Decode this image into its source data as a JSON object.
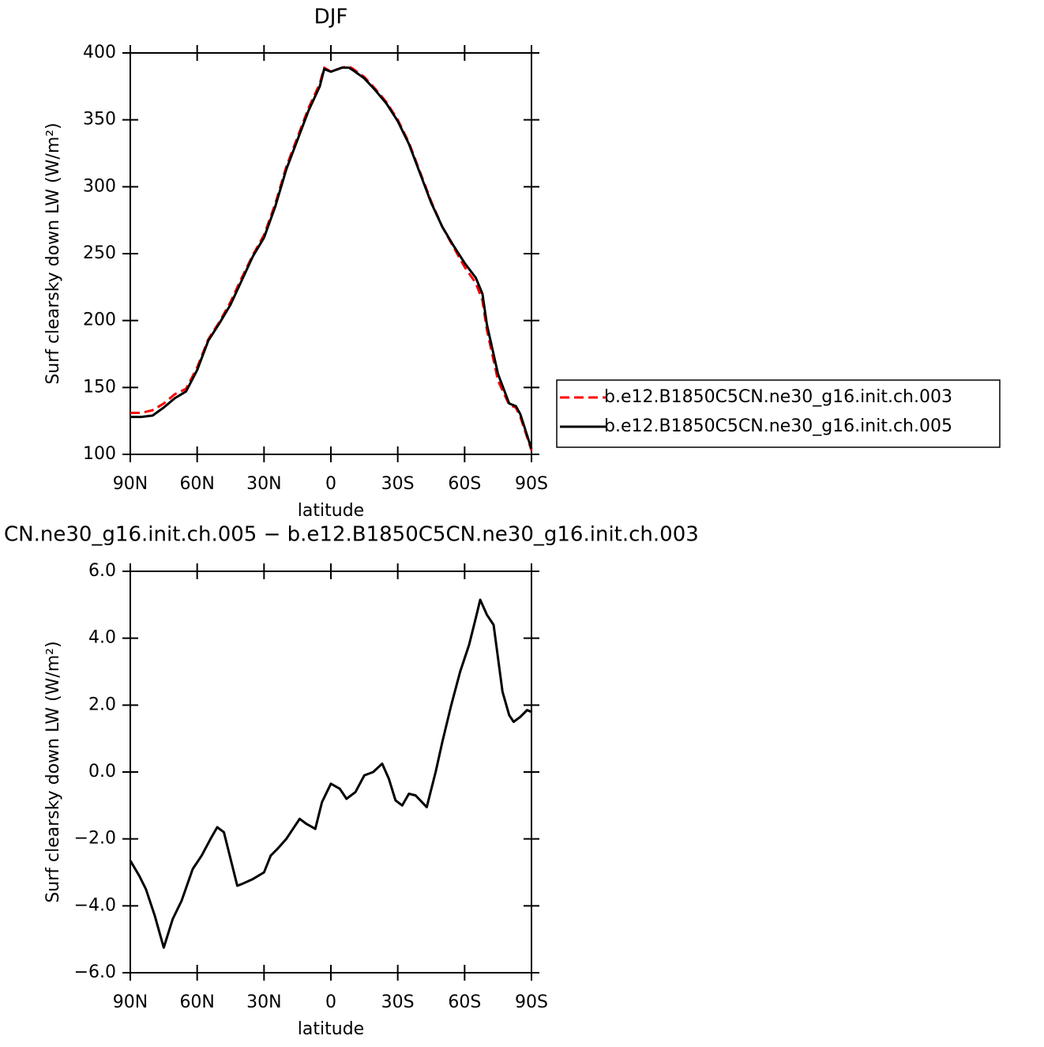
{
  "chart_data": [
    {
      "type": "line",
      "title": "DJF",
      "xlabel": "latitude",
      "ylabel": "Surf clearsky down LW (W/m²)",
      "x": [
        90,
        85,
        80,
        75,
        70,
        65,
        60,
        55,
        50,
        45,
        40,
        35,
        30,
        25,
        20,
        15,
        10,
        5,
        3,
        0,
        -5,
        -8,
        -10,
        -15,
        -20,
        -25,
        -30,
        -35,
        -40,
        -45,
        -50,
        -55,
        -60,
        -65,
        -68,
        -70,
        -75,
        -80,
        -83,
        -85,
        -90
      ],
      "series": [
        {
          "name": "b.e12.B1850C5CN.ne30_g16.init.ch.003",
          "color": "#ff0000",
          "dash": true,
          "values": [
            131,
            131,
            133,
            138,
            145,
            149,
            165,
            186,
            199,
            214,
            232,
            249,
            264,
            287,
            315,
            337,
            359,
            377,
            389,
            386,
            389,
            390,
            388,
            382,
            373,
            363,
            350,
            333,
            311,
            289,
            270,
            255,
            240,
            228,
            215,
            193,
            155,
            137,
            135,
            128,
            103
          ]
        },
        {
          "name": "b.e12.B1850C5CN.ne30_g16.init.ch.005",
          "color": "#000000",
          "dash": false,
          "values": [
            128,
            128,
            129,
            135,
            142,
            147,
            163,
            185,
            198,
            212,
            230,
            248,
            262,
            285,
            313,
            335,
            357,
            375,
            388,
            386,
            389,
            389,
            387,
            381,
            372,
            362,
            349,
            332,
            310,
            288,
            270,
            256,
            243,
            232,
            220,
            197,
            160,
            138,
            136,
            130,
            104
          ]
        }
      ],
      "xlim": [
        90,
        -90
      ],
      "xticks": [
        {
          "value": 90,
          "label": "90N"
        },
        {
          "value": 60,
          "label": "60N"
        },
        {
          "value": 30,
          "label": "30N"
        },
        0,
        {
          "value": -30,
          "label": "30S"
        },
        {
          "value": -60,
          "label": "60S"
        },
        {
          "value": -90,
          "label": "90S"
        }
      ],
      "ylim": [
        100,
        400
      ],
      "yticks": [
        100,
        150,
        200,
        250,
        300,
        350,
        400
      ],
      "legend": "right"
    },
    {
      "type": "line",
      "title": "CN.ne30_g16.init.ch.005 − b.e12.B1850C5CN.ne30_g16.init.ch.003",
      "xlabel": "latitude",
      "ylabel": "Surf clearsky down LW (W/m²)",
      "x": [
        90,
        86,
        83,
        79,
        75,
        71,
        67,
        62,
        58,
        54,
        51,
        48,
        45,
        42,
        40,
        35,
        30,
        27,
        24,
        20,
        17,
        14,
        11,
        7,
        4,
        0,
        -4,
        -7,
        -11,
        -15,
        -19,
        -23,
        -26,
        -29,
        -32,
        -35,
        -38,
        -43,
        -47,
        -50,
        -54,
        -58,
        -62,
        -65,
        -67,
        -70,
        -73,
        -77,
        -80,
        -82,
        -85,
        -88,
        -90
      ],
      "series": [
        {
          "color": "#000000",
          "dash": false,
          "values": [
            -2.65,
            -3.1,
            -3.5,
            -4.3,
            -5.25,
            -4.4,
            -3.85,
            -2.9,
            -2.5,
            -2.0,
            -1.65,
            -1.8,
            -2.6,
            -3.4,
            -3.35,
            -3.2,
            -3.0,
            -2.5,
            -2.3,
            -2.0,
            -1.7,
            -1.4,
            -1.55,
            -1.7,
            -0.9,
            -0.35,
            -0.5,
            -0.8,
            -0.6,
            -0.1,
            0.0,
            0.25,
            -0.2,
            -0.85,
            -1.0,
            -0.65,
            -0.7,
            -1.05,
            0.0,
            0.9,
            2.0,
            3.0,
            3.8,
            4.6,
            5.15,
            4.7,
            4.4,
            2.4,
            1.7,
            1.5,
            1.65,
            1.85,
            1.8
          ]
        }
      ],
      "xlim": [
        90,
        -90
      ],
      "xticks": [
        {
          "value": 90,
          "label": "90N"
        },
        {
          "value": 60,
          "label": "60N"
        },
        {
          "value": 30,
          "label": "30N"
        },
        0,
        {
          "value": -30,
          "label": "30S"
        },
        {
          "value": -60,
          "label": "60S"
        },
        {
          "value": -90,
          "label": "90S"
        }
      ],
      "ylim": [
        -6,
        6
      ],
      "yticks": [
        {
          "value": -6,
          "label": "−6.0"
        },
        {
          "value": -4,
          "label": "−4.0"
        },
        {
          "value": -2,
          "label": "−2.0"
        },
        {
          "value": 0,
          "label": "0.0"
        },
        {
          "value": 2,
          "label": "2.0"
        },
        {
          "value": 4,
          "label": "4.0"
        },
        {
          "value": 6,
          "label": "6.0"
        }
      ]
    }
  ]
}
